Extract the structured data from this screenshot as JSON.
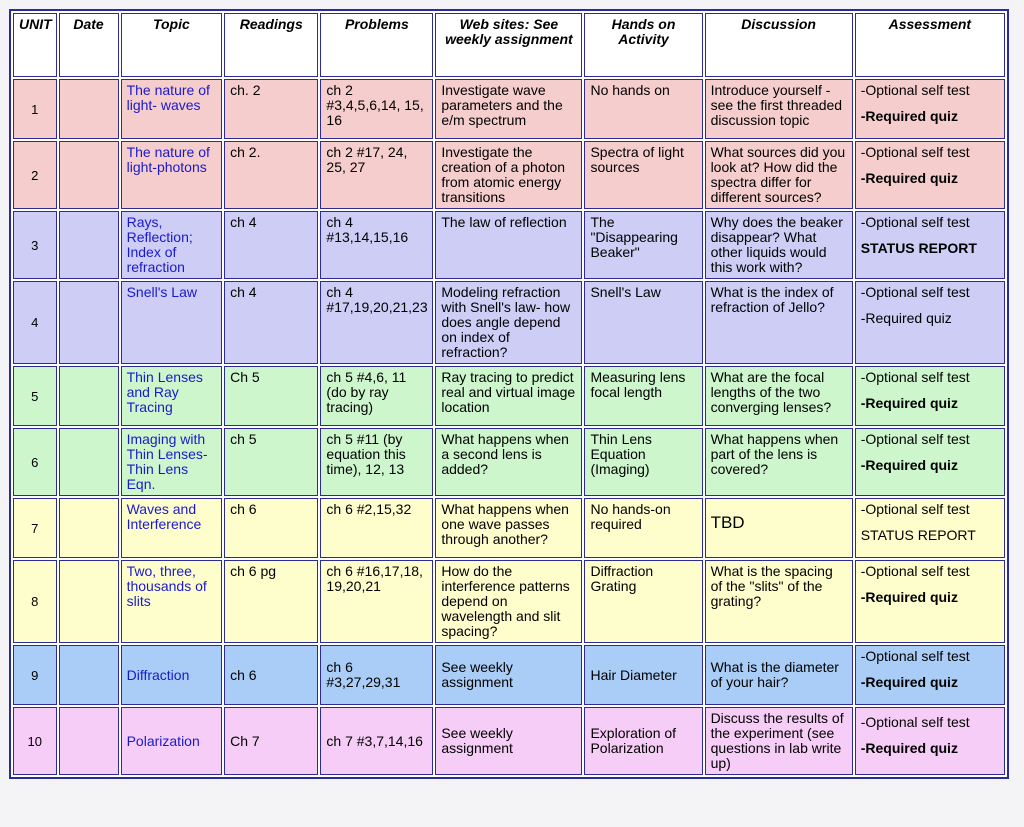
{
  "table": {
    "headers": [
      "UNIT",
      "Date",
      "Topic",
      "Readings",
      "Problems",
      "Web sites: See weekly assignment",
      "Hands on Activity",
      "Discussion",
      "Assessment"
    ],
    "rows": [
      {
        "color": "#f6cdcd",
        "unit": "1",
        "topic": "The nature of light- waves",
        "readings": "ch. 2",
        "problems": "ch 2 #3,4,5,6,14, 15, 16",
        "web": "Investigate wave parameters and the e/m spectrum",
        "hands_on": "No hands on",
        "discussion": "Introduce yourself - see the first threaded discussion topic",
        "assessment": [
          {
            "text": "-Optional self test"
          },
          {
            "text": "-Required quiz",
            "bold": true
          }
        ]
      },
      {
        "color": "#f6cdcd",
        "unit": "2",
        "topic": "The nature of light-photons",
        "readings": "ch 2.",
        "problems": "ch 2 #17, 24, 25, 27",
        "web": "Investigate the creation of a photon from atomic energy transitions",
        "hands_on": "Spectra of light sources",
        "discussion": "What sources did you look at? How did the spectra differ for different sources?",
        "assessment": [
          {
            "text": "-Optional self test"
          },
          {
            "text": "-Required quiz",
            "bold": true
          }
        ]
      },
      {
        "color": "#cdcdf6",
        "unit": "3",
        "topic": "Rays, Reflection; Index of refraction",
        "readings": "ch 4",
        "problems": "ch 4 #13,14,15,16",
        "web": "The law of reflection",
        "hands_on": "The \"Disappearing Beaker\"",
        "discussion": "Why does the beaker disappear? What other liquids would this work with?",
        "assessment": [
          {
            "text": "-Optional self test"
          },
          {
            "text": "STATUS REPORT",
            "bold": true
          }
        ]
      },
      {
        "color": "#cdcdf6",
        "unit": "4",
        "topic": "Snell's Law",
        "readings": "ch 4",
        "problems": "ch 4 #17,19,20,21,23",
        "web": "Modeling refraction with Snell's law- how does angle depend on index of refraction?",
        "hands_on": "Snell's Law",
        "discussion": "What is the index of refraction of Jello?",
        "assessment": [
          {
            "text": "-Optional self test"
          },
          {
            "text": "-Required quiz"
          }
        ]
      },
      {
        "color": "#cdf6cd",
        "unit": "5",
        "topic": "Thin Lenses and Ray Tracing",
        "readings": "Ch 5",
        "problems": "ch 5 #4,6, 11 (do by ray tracing)",
        "web": "Ray tracing to predict real and virtual image location",
        "hands_on": "Measuring lens focal length",
        "discussion": "What are the focal lengths of the two converging lenses?",
        "assessment": [
          {
            "text": "-Optional self test"
          },
          {
            "text": "-Required quiz",
            "bold": true
          }
        ]
      },
      {
        "color": "#cdf6cd",
        "unit": "6",
        "topic": "Imaging with Thin Lenses- Thin Lens Eqn.",
        "readings": "ch 5",
        "problems": "ch 5 #11 (by equation this time), 12, 13",
        "web": "What happens when a second lens is added?",
        "hands_on": "Thin Lens Equation (Imaging)",
        "discussion": "What happens when part of the lens is covered?",
        "assessment": [
          {
            "text": "-Optional self test"
          },
          {
            "text": "-Required quiz",
            "bold": true
          }
        ]
      },
      {
        "color": "#fefecd",
        "unit": "7",
        "topic": "Waves and Interference",
        "readings": "ch 6",
        "problems": "ch 6 #2,15,32",
        "web": "What happens when one wave passes through another?",
        "hands_on": "No hands-on required",
        "discussion": "TBD",
        "assessment": [
          {
            "text": "-Optional self test"
          },
          {
            "text": "STATUS REPORT"
          }
        ]
      },
      {
        "color": "#fefecd",
        "unit": "8",
        "topic": "Two, three, thousands of slits",
        "readings": "ch 6 pg",
        "problems": "ch 6 #16,17,18, 19,20,21",
        "web": "How do the interference patterns depend on wavelength and slit spacing?",
        "hands_on": "Diffraction Grating",
        "discussion": "What is the spacing of the \"slits\" of the grating?",
        "assessment": [
          {
            "text": "-Optional self test"
          },
          {
            "text": "-Required quiz",
            "bold": true
          }
        ]
      },
      {
        "color": "#a9cdf6",
        "unit": "9",
        "topic": "Diffraction",
        "readings": "ch 6",
        "problems": "ch 6 #3,27,29,31",
        "web": "See weekly assignment",
        "hands_on": "Hair Diameter",
        "discussion": "What is the diameter of your hair?",
        "assessment": [
          {
            "text": "-Optional self test"
          },
          {
            "text": "-Required quiz",
            "bold": true
          }
        ]
      },
      {
        "color": "#f6cdf6",
        "unit": "10",
        "topic": "Polarization",
        "readings": "Ch 7",
        "problems": "ch 7 #3,7,14,16",
        "web": "See weekly assignment",
        "hands_on": "Exploration of Polarization",
        "discussion": "Discuss the results of the experiment (see questions in lab write up)",
        "assessment": [
          {
            "text": "-Optional self test"
          },
          {
            "text": "-Required quiz",
            "bold": true
          }
        ]
      }
    ]
  }
}
